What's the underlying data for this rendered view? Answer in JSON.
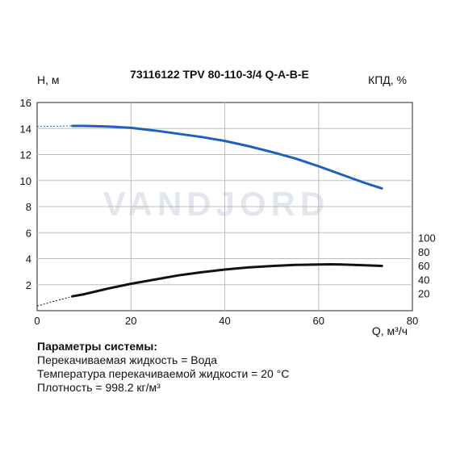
{
  "watermark": "VANDJORD",
  "chart_data": {
    "type": "line",
    "title": "73116122 TPV 80-110-3/4 Q-A-B-E",
    "xlabel": "Q, м³/ч",
    "ylabel_left": "Н, м",
    "ylabel_right": "КПД, %",
    "xlim": [
      0,
      80
    ],
    "ylim_left": [
      0,
      16
    ],
    "ylim_right_ticks": [
      20,
      40,
      60,
      80,
      100
    ],
    "x_ticks": [
      0,
      20,
      40,
      60,
      80
    ],
    "y_ticks_left": [
      2,
      4,
      6,
      8,
      10,
      12,
      14,
      16
    ],
    "grid": true,
    "series": [
      {
        "name": "",
        "axis": "left",
        "color": "#1f5fbf",
        "x": [
          0,
          7.5,
          10,
          15,
          20,
          25,
          30,
          35,
          40,
          45,
          50,
          55,
          60,
          65,
          70,
          73.5
        ],
        "y": [
          14.15,
          14.2,
          14.2,
          14.15,
          14.05,
          13.85,
          13.6,
          13.35,
          13.05,
          12.65,
          12.2,
          11.7,
          11.1,
          10.45,
          9.8,
          9.4
        ],
        "dashed_until_x": 7.5
      },
      {
        "name": "",
        "axis": "right",
        "color": "#111111",
        "x": [
          0,
          7.5,
          10,
          15,
          20,
          25,
          30,
          35,
          40,
          45,
          50,
          55,
          60,
          62.5,
          65,
          70,
          73.5
        ],
        "y": [
          2,
          16,
          19,
          27,
          34,
          40,
          46,
          50.5,
          54.5,
          57.5,
          59.5,
          61,
          61.8,
          62,
          61.7,
          60.6,
          59.7
        ],
        "dashed_until_x": 7.5
      }
    ]
  },
  "parameters": {
    "heading": "Параметры системы:",
    "lines": [
      "Перекачиваемая жидкость = Вода",
      "Температура перекачиваемой жидкости = 20 °C",
      "Плотность = 998.2 кг/м³"
    ]
  }
}
